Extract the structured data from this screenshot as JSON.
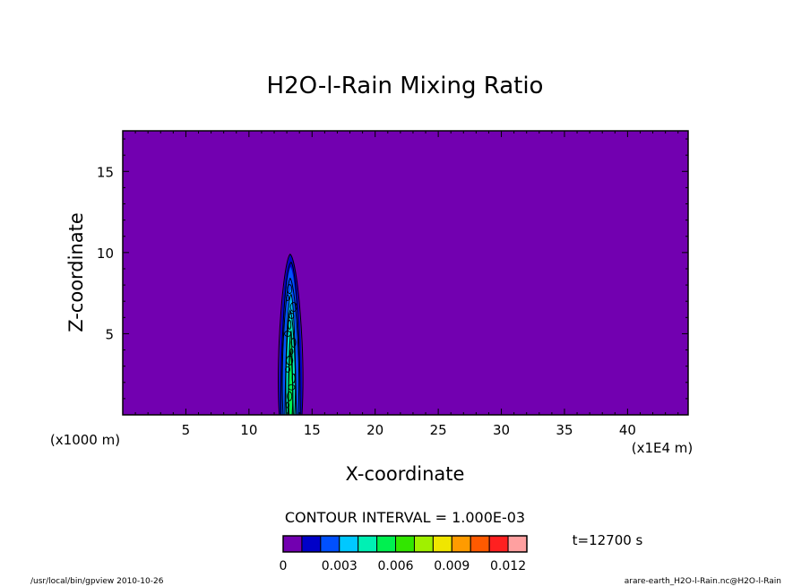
{
  "chart_data": {
    "type": "heatmap",
    "title": "H2O-l-Rain Mixing Ratio",
    "xlabel": "X-coordinate",
    "ylabel": "Z-coordinate",
    "x_unit": "(x1E4 m)",
    "y_unit": "(x1000 m)",
    "xlim": [
      0,
      44.8
    ],
    "ylim": [
      0,
      17.5
    ],
    "x_ticks": [
      5,
      10,
      15,
      20,
      25,
      30,
      35,
      40
    ],
    "y_ticks": [
      5,
      10,
      15
    ],
    "background_value": 0,
    "feature": {
      "x_center": 13.3,
      "x_range": [
        12.4,
        14.2
      ],
      "z_range": [
        0,
        9.9
      ],
      "description_levels": [
        0.001,
        0.002,
        0.003,
        0.004,
        0.005,
        0.006
      ]
    },
    "contour_interval_text": "CONTOUR INTERVAL = 1.000E-03",
    "time_text": "t=12700 s",
    "colorbar": {
      "levels": [
        0,
        0.001,
        0.002,
        0.003,
        0.004,
        0.005,
        0.006,
        0.007,
        0.008,
        0.009,
        0.01,
        0.011,
        0.012
      ],
      "tick_labels": [
        "0",
        "0.003",
        "0.006",
        "0.009",
        "0.012"
      ],
      "colors": [
        "#7200b0",
        "#0000c8",
        "#0050ff",
        "#00c8ff",
        "#00f0b4",
        "#00f050",
        "#32e600",
        "#a0f000",
        "#f0e600",
        "#ff9b00",
        "#ff5a00",
        "#ff2020",
        "#ffa0a0"
      ]
    },
    "grid": false
  },
  "footer": {
    "left": "/usr/local/bin/gpview  2010-10-26",
    "right": "arare-earth_H2O-l-Rain.nc@H2O-l-Rain"
  }
}
